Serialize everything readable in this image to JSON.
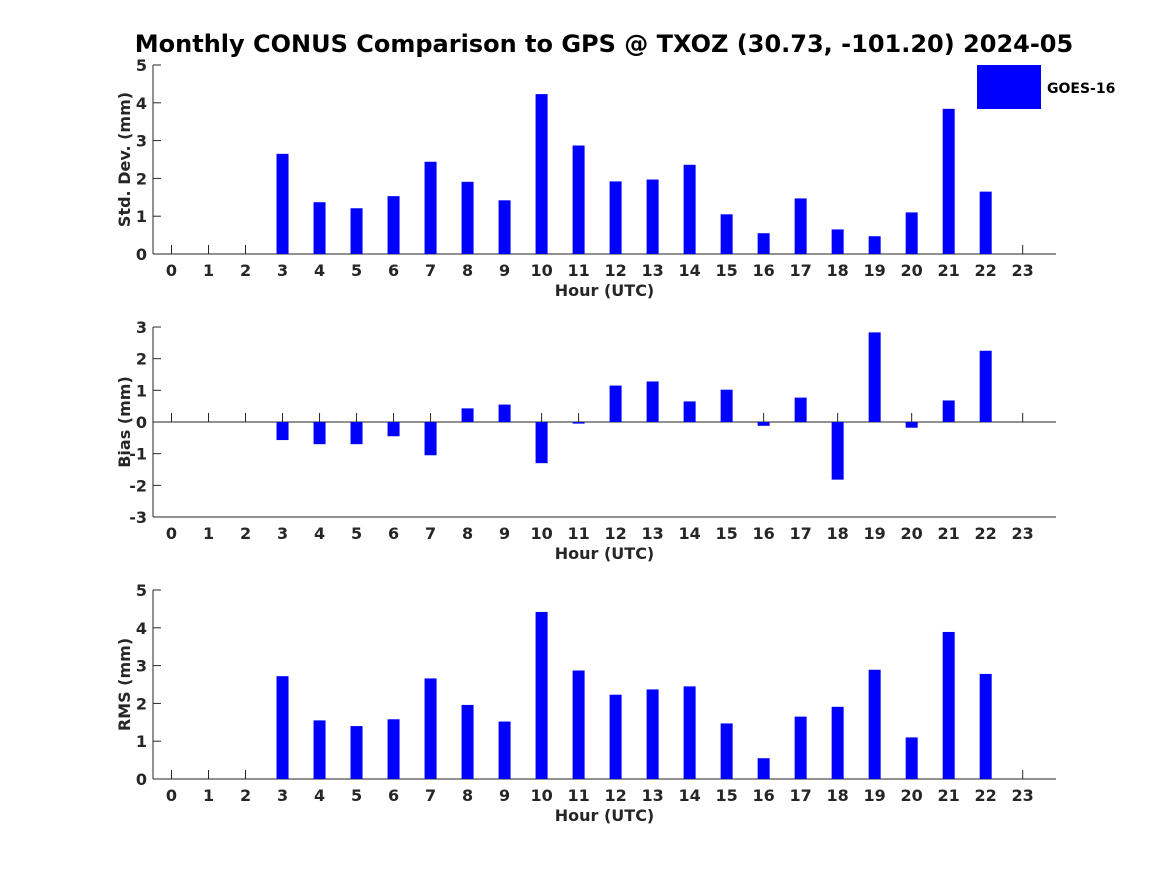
{
  "title": "Monthly CONUS Comparison to GPS @ TXOZ (30.73, -101.20) 2024-05",
  "legend": {
    "label": "GOES-16",
    "color": "#0000ff",
    "placement": "top-right"
  },
  "chart_data": [
    {
      "type": "bar",
      "name": "stddev",
      "x": [
        0,
        1,
        2,
        3,
        4,
        5,
        6,
        7,
        8,
        9,
        10,
        11,
        12,
        13,
        14,
        15,
        16,
        17,
        18,
        19,
        20,
        21,
        22,
        23
      ],
      "series": [
        {
          "name": "GOES-16",
          "color": "#0000ff",
          "values": [
            null,
            null,
            null,
            2.65,
            1.37,
            1.21,
            1.53,
            2.44,
            1.91,
            1.42,
            4.23,
            2.87,
            1.92,
            1.97,
            2.36,
            1.05,
            0.55,
            1.47,
            0.65,
            0.47,
            1.1,
            3.84,
            1.65,
            null
          ]
        }
      ],
      "xlabel": "Hour (UTC)",
      "ylabel": "Std. Dev. (mm)",
      "ylim": [
        0,
        5
      ],
      "yticks": [
        0,
        1,
        2,
        3,
        4,
        5
      ],
      "xlim": [
        -0.5,
        23.9
      ],
      "grid": false
    },
    {
      "type": "bar",
      "name": "bias",
      "x": [
        0,
        1,
        2,
        3,
        4,
        5,
        6,
        7,
        8,
        9,
        10,
        11,
        12,
        13,
        14,
        15,
        16,
        17,
        18,
        19,
        20,
        21,
        22,
        23
      ],
      "series": [
        {
          "name": "GOES-16",
          "color": "#0000ff",
          "values": [
            null,
            null,
            null,
            -0.57,
            -0.7,
            -0.7,
            -0.45,
            -1.05,
            0.43,
            0.55,
            -1.3,
            -0.05,
            1.15,
            1.28,
            0.65,
            1.02,
            -0.12,
            0.77,
            -1.82,
            2.83,
            -0.18,
            0.68,
            2.25,
            null
          ]
        }
      ],
      "xlabel": "Hour (UTC)",
      "ylabel": "Bias (mm)",
      "ylim": [
        -3,
        3
      ],
      "yticks": [
        -3,
        -2,
        -1,
        0,
        1,
        2,
        3
      ],
      "xlim": [
        -0.5,
        23.9
      ],
      "grid": false
    },
    {
      "type": "bar",
      "name": "rms",
      "x": [
        0,
        1,
        2,
        3,
        4,
        5,
        6,
        7,
        8,
        9,
        10,
        11,
        12,
        13,
        14,
        15,
        16,
        17,
        18,
        19,
        20,
        21,
        22,
        23
      ],
      "series": [
        {
          "name": "GOES-16",
          "color": "#0000ff",
          "values": [
            null,
            null,
            null,
            2.72,
            1.55,
            1.4,
            1.58,
            2.66,
            1.96,
            1.52,
            4.42,
            2.87,
            2.23,
            2.37,
            2.45,
            1.47,
            0.55,
            1.65,
            1.91,
            2.89,
            1.1,
            3.89,
            2.78,
            null
          ]
        }
      ],
      "xlabel": "Hour (UTC)",
      "ylabel": "RMS (mm)",
      "ylim": [
        0,
        5
      ],
      "yticks": [
        0,
        1,
        2,
        3,
        4,
        5
      ],
      "xlim": [
        -0.5,
        23.9
      ],
      "grid": false
    }
  ]
}
